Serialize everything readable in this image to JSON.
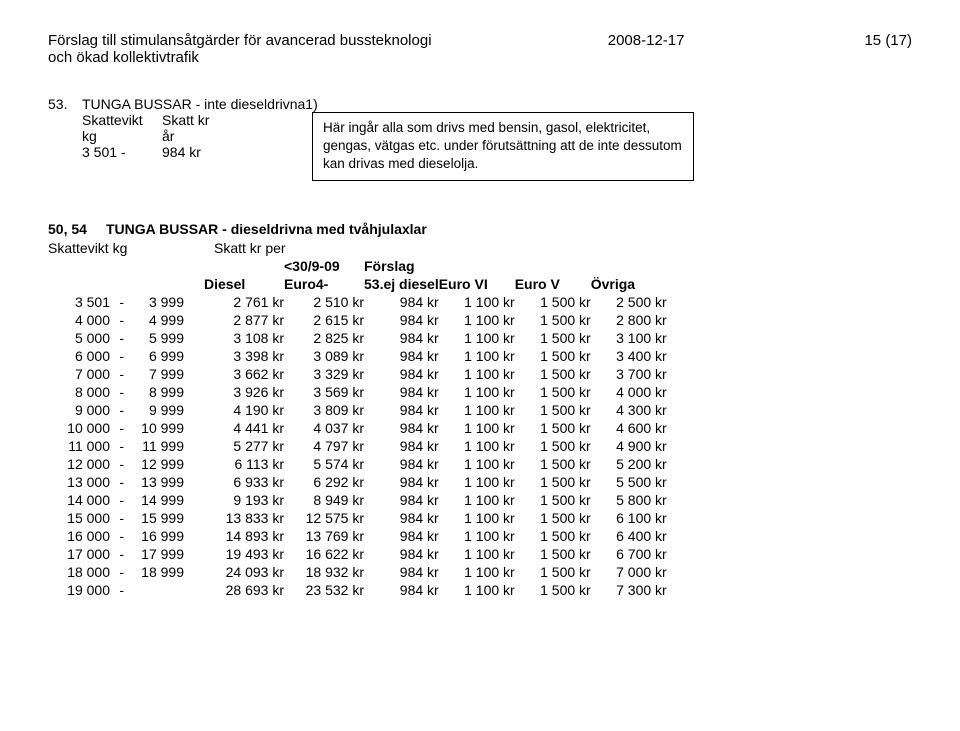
{
  "header": {
    "title_line1": "Förslag till stimulansåtgärder för avancerad bussteknologi",
    "title_line2": "och ökad kollektivtrafik",
    "date": "2008-12-17",
    "page": "15 (17)"
  },
  "section53": {
    "num": "53.",
    "title": "TUNGA BUSSAR - inte dieseldrivna1)",
    "head_col1": "Skattevikt",
    "head_col2": "Skatt kr",
    "row_col1": "kg",
    "row_col2": "år",
    "val_col1": "3 501 -",
    "val_col2": "984 kr",
    "box_text": "Här ingår alla som drivs med bensin, gasol, elektricitet, gengas, vätgas etc. under förutsättning att de inte dessutom kan drivas med dieselolja."
  },
  "section50": {
    "num": "50, 54",
    "title": "TUNGA BUSSAR - dieseldrivna med tvåhjulaxlar",
    "sub_left": "Skattevikt kg",
    "sub_mid": "Skatt kr per",
    "hdr_date": "<30/9-09",
    "hdr_forslag": "Förslag",
    "hdr_diesel": "Diesel",
    "hdr_euro4": "Euro4-",
    "hdr_ej": "53.ej diesel",
    "hdr_e6": "Euro VI",
    "hdr_e5": "Euro V",
    "hdr_ov": "Övriga",
    "rows": [
      {
        "lo": "3 501",
        "sep": "-",
        "hi": "3 999",
        "diesel": "2 761 kr",
        "euro4": "2 510 kr",
        "ej": "984 kr",
        "e6": "1 100 kr",
        "e5": "1 500 kr",
        "ov": "2 500 kr"
      },
      {
        "lo": "4 000",
        "sep": "-",
        "hi": "4 999",
        "diesel": "2 877 kr",
        "euro4": "2 615 kr",
        "ej": "984 kr",
        "e6": "1 100 kr",
        "e5": "1 500 kr",
        "ov": "2 800 kr"
      },
      {
        "lo": "5 000",
        "sep": "-",
        "hi": "5 999",
        "diesel": "3 108 kr",
        "euro4": "2 825 kr",
        "ej": "984 kr",
        "e6": "1 100 kr",
        "e5": "1 500 kr",
        "ov": "3 100 kr"
      },
      {
        "lo": "6 000",
        "sep": "-",
        "hi": "6 999",
        "diesel": "3 398 kr",
        "euro4": "3 089 kr",
        "ej": "984 kr",
        "e6": "1 100 kr",
        "e5": "1 500 kr",
        "ov": "3 400 kr"
      },
      {
        "lo": "7 000",
        "sep": "-",
        "hi": "7 999",
        "diesel": "3 662 kr",
        "euro4": "3 329 kr",
        "ej": "984 kr",
        "e6": "1 100 kr",
        "e5": "1 500 kr",
        "ov": "3 700 kr"
      },
      {
        "lo": "8 000",
        "sep": "-",
        "hi": "8 999",
        "diesel": "3 926 kr",
        "euro4": "3 569 kr",
        "ej": "984 kr",
        "e6": "1 100 kr",
        "e5": "1 500 kr",
        "ov": "4 000 kr"
      },
      {
        "lo": "9 000",
        "sep": "-",
        "hi": "9 999",
        "diesel": "4 190 kr",
        "euro4": "3 809 kr",
        "ej": "984 kr",
        "e6": "1 100 kr",
        "e5": "1 500 kr",
        "ov": "4 300 kr"
      },
      {
        "lo": "10 000",
        "sep": "-",
        "hi": "10 999",
        "diesel": "4 441 kr",
        "euro4": "4 037 kr",
        "ej": "984 kr",
        "e6": "1 100 kr",
        "e5": "1 500 kr",
        "ov": "4 600 kr"
      },
      {
        "lo": "11 000",
        "sep": "-",
        "hi": "11 999",
        "diesel": "5 277 kr",
        "euro4": "4 797 kr",
        "ej": "984 kr",
        "e6": "1 100 kr",
        "e5": "1 500 kr",
        "ov": "4 900 kr"
      },
      {
        "lo": "12 000",
        "sep": "-",
        "hi": "12 999",
        "diesel": "6 113 kr",
        "euro4": "5 574 kr",
        "ej": "984 kr",
        "e6": "1 100 kr",
        "e5": "1 500 kr",
        "ov": "5 200 kr"
      },
      {
        "lo": "13 000",
        "sep": "-",
        "hi": "13 999",
        "diesel": "6 933 kr",
        "euro4": "6 292 kr",
        "ej": "984 kr",
        "e6": "1 100 kr",
        "e5": "1 500 kr",
        "ov": "5 500 kr"
      },
      {
        "lo": "14 000",
        "sep": "-",
        "hi": "14 999",
        "diesel": "9 193 kr",
        "euro4": "8 949 kr",
        "ej": "984 kr",
        "e6": "1 100 kr",
        "e5": "1 500 kr",
        "ov": "5 800 kr"
      },
      {
        "lo": "15 000",
        "sep": "-",
        "hi": "15 999",
        "diesel": "13 833 kr",
        "euro4": "12 575 kr",
        "ej": "984 kr",
        "e6": "1 100 kr",
        "e5": "1 500 kr",
        "ov": "6 100 kr"
      },
      {
        "lo": "16 000",
        "sep": "-",
        "hi": "16 999",
        "diesel": "14 893 kr",
        "euro4": "13 769 kr",
        "ej": "984 kr",
        "e6": "1 100 kr",
        "e5": "1 500 kr",
        "ov": "6 400 kr"
      },
      {
        "lo": "17 000",
        "sep": "-",
        "hi": "17 999",
        "diesel": "19 493 kr",
        "euro4": "16 622 kr",
        "ej": "984 kr",
        "e6": "1 100 kr",
        "e5": "1 500 kr",
        "ov": "6 700 kr"
      },
      {
        "lo": "18 000",
        "sep": "-",
        "hi": "18 999",
        "diesel": "24 093 kr",
        "euro4": "18 932 kr",
        "ej": "984 kr",
        "e6": "1 100 kr",
        "e5": "1 500 kr",
        "ov": "7 000 kr"
      },
      {
        "lo": "19 000",
        "sep": "-",
        "hi": "",
        "diesel": "28 693 kr",
        "euro4": "23 532 kr",
        "ej": "984 kr",
        "e6": "1 100 kr",
        "e5": "1 500 kr",
        "ov": "7 300 kr"
      }
    ]
  }
}
